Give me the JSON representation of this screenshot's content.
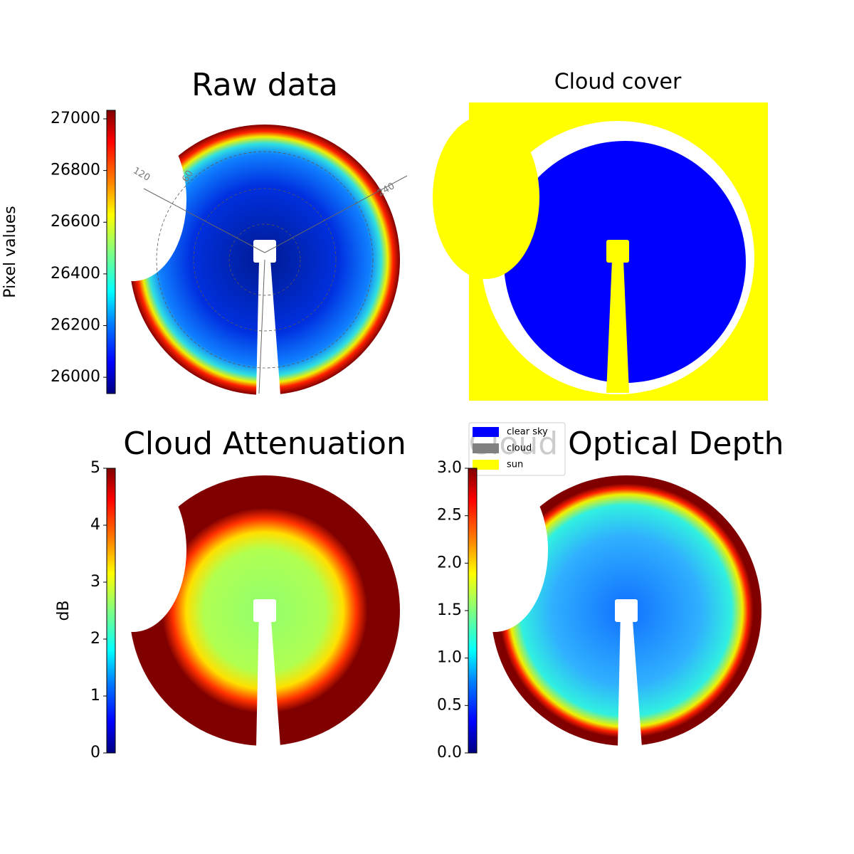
{
  "chart_data": [
    {
      "type": "image",
      "title": "Raw data",
      "colorbar": {
        "label": "Pixel values",
        "lim": [
          25937,
          27033
        ],
        "ticks": [
          26000,
          26200,
          26400,
          26600,
          26800,
          27000
        ]
      },
      "annotations": [
        "120",
        "60",
        "240"
      ]
    },
    {
      "type": "classification",
      "title": "Cloud cover",
      "legend": [
        {
          "name": "clear sky",
          "color": "#0000ff"
        },
        {
          "name": "cloud",
          "color": "#808080"
        },
        {
          "name": "sun",
          "color": "#ffff00"
        }
      ]
    },
    {
      "type": "image",
      "title": "Cloud Attenuation",
      "colorbar": {
        "label": "dB",
        "lim": [
          0,
          5
        ],
        "ticks": [
          0,
          1,
          2,
          3,
          4,
          5
        ]
      }
    },
    {
      "type": "image",
      "title": "Cloud Optical Depth",
      "colorbar": {
        "lim": [
          0,
          3
        ],
        "ticks": [
          {
            "value": 0,
            "label": "0.0"
          },
          {
            "value": 0.5,
            "label": "0.5"
          },
          {
            "value": 1,
            "label": "1.0"
          },
          {
            "value": 1.5,
            "label": "1.5"
          },
          {
            "value": 2,
            "label": "2.0"
          },
          {
            "value": 2.5,
            "label": "2.5"
          },
          {
            "value": 3,
            "label": "3.0"
          }
        ]
      }
    }
  ]
}
